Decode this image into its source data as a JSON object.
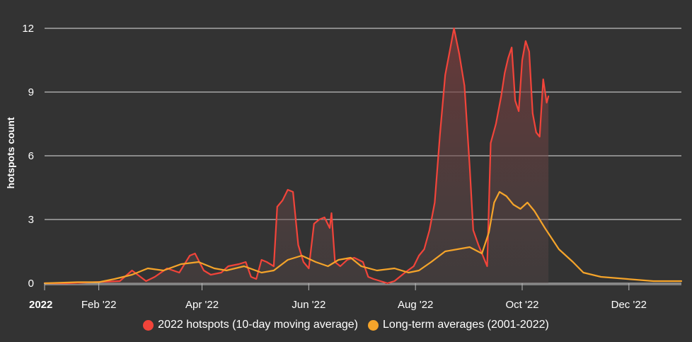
{
  "colors": {
    "background": "#333333",
    "hotspots_2022": "#f2443a",
    "long_term": "#f5a42a",
    "grid": "#ffffff"
  },
  "chart_data": {
    "type": "line",
    "ylabel": "hotspots count",
    "ylim": [
      0,
      12
    ],
    "yticks": [
      "0",
      "3",
      "6",
      "9",
      "12"
    ],
    "x_axis": {
      "range": [
        "2022-01-01",
        "2022-12-31"
      ],
      "ticks": [
        {
          "date": "2022-01-01",
          "label": "2022",
          "bold": true
        },
        {
          "date": "2022-02-01",
          "label": "Feb '22"
        },
        {
          "date": "2022-04-01",
          "label": "Apr '22"
        },
        {
          "date": "2022-06-01",
          "label": "Jun '22"
        },
        {
          "date": "2022-08-01",
          "label": "Aug '22"
        },
        {
          "date": "2022-10-01",
          "label": "Oct '22"
        },
        {
          "date": "2022-12-01",
          "label": "Dec '22"
        }
      ]
    },
    "grid": "horizontal",
    "legend_position": "bottom",
    "series": [
      {
        "name": "2022 hotspots (10-day moving average)",
        "color": "#f2443a",
        "points": [
          [
            "2022-01-01",
            0.0
          ],
          [
            "2022-01-14",
            0.0
          ],
          [
            "2022-02-13",
            0.1
          ],
          [
            "2022-02-20",
            0.6
          ],
          [
            "2022-02-28",
            0.1
          ],
          [
            "2022-03-05",
            0.3
          ],
          [
            "2022-03-12",
            0.7
          ],
          [
            "2022-03-19",
            0.5
          ],
          [
            "2022-03-25",
            1.3
          ],
          [
            "2022-03-28",
            1.4
          ],
          [
            "2022-04-02",
            0.6
          ],
          [
            "2022-04-06",
            0.4
          ],
          [
            "2022-04-12",
            0.5
          ],
          [
            "2022-04-16",
            0.8
          ],
          [
            "2022-04-22",
            0.9
          ],
          [
            "2022-04-26",
            1.0
          ],
          [
            "2022-04-29",
            0.3
          ],
          [
            "2022-05-02",
            0.2
          ],
          [
            "2022-05-05",
            1.1
          ],
          [
            "2022-05-08",
            1.0
          ],
          [
            "2022-05-12",
            0.8
          ],
          [
            "2022-05-14",
            3.6
          ],
          [
            "2022-05-17",
            3.9
          ],
          [
            "2022-05-20",
            4.4
          ],
          [
            "2022-05-23",
            4.3
          ],
          [
            "2022-05-26",
            1.8
          ],
          [
            "2022-05-29",
            1.0
          ],
          [
            "2022-06-01",
            0.7
          ],
          [
            "2022-06-04",
            2.8
          ],
          [
            "2022-06-07",
            3.0
          ],
          [
            "2022-06-10",
            3.1
          ],
          [
            "2022-06-13",
            2.6
          ],
          [
            "2022-06-14",
            3.3
          ],
          [
            "2022-06-16",
            1.0
          ],
          [
            "2022-06-19",
            0.8
          ],
          [
            "2022-06-23",
            1.1
          ],
          [
            "2022-06-27",
            1.2
          ],
          [
            "2022-07-02",
            1.0
          ],
          [
            "2022-07-05",
            0.3
          ],
          [
            "2022-07-08",
            0.2
          ],
          [
            "2022-07-12",
            0.1
          ],
          [
            "2022-07-16",
            0.0
          ],
          [
            "2022-07-20",
            0.1
          ],
          [
            "2022-07-26",
            0.5
          ],
          [
            "2022-07-31",
            0.8
          ],
          [
            "2022-08-03",
            1.3
          ],
          [
            "2022-08-06",
            1.6
          ],
          [
            "2022-08-09",
            2.5
          ],
          [
            "2022-08-12",
            3.8
          ],
          [
            "2022-08-15",
            7.0
          ],
          [
            "2022-08-18",
            9.8
          ],
          [
            "2022-08-21",
            11.1
          ],
          [
            "2022-08-23",
            12.0
          ],
          [
            "2022-08-26",
            10.8
          ],
          [
            "2022-08-29",
            9.3
          ],
          [
            "2022-09-01",
            5.5
          ],
          [
            "2022-09-03",
            2.5
          ],
          [
            "2022-09-06",
            1.8
          ],
          [
            "2022-09-09",
            1.2
          ],
          [
            "2022-09-11",
            0.8
          ],
          [
            "2022-09-13",
            6.6
          ],
          [
            "2022-09-16",
            7.5
          ],
          [
            "2022-09-19",
            8.8
          ],
          [
            "2022-09-21",
            9.9
          ],
          [
            "2022-09-23",
            10.6
          ],
          [
            "2022-09-25",
            11.1
          ],
          [
            "2022-09-27",
            8.6
          ],
          [
            "2022-09-29",
            8.1
          ],
          [
            "2022-10-01",
            10.5
          ],
          [
            "2022-10-03",
            11.4
          ],
          [
            "2022-10-05",
            10.9
          ],
          [
            "2022-10-07",
            8.0
          ],
          [
            "2022-10-09",
            7.1
          ],
          [
            "2022-10-11",
            6.9
          ],
          [
            "2022-10-13",
            9.6
          ],
          [
            "2022-10-15",
            8.5
          ],
          [
            "2022-10-16",
            8.8
          ]
        ]
      },
      {
        "name": "Long-term averages (2001-2022)",
        "color": "#f5a42a",
        "points": [
          [
            "2022-01-01",
            0.0
          ],
          [
            "2022-01-20",
            0.05
          ],
          [
            "2022-02-01",
            0.05
          ],
          [
            "2022-02-10",
            0.2
          ],
          [
            "2022-02-20",
            0.4
          ],
          [
            "2022-03-01",
            0.7
          ],
          [
            "2022-03-10",
            0.6
          ],
          [
            "2022-03-20",
            0.9
          ],
          [
            "2022-03-30",
            1.0
          ],
          [
            "2022-04-08",
            0.7
          ],
          [
            "2022-04-15",
            0.6
          ],
          [
            "2022-04-25",
            0.8
          ],
          [
            "2022-05-05",
            0.5
          ],
          [
            "2022-05-12",
            0.6
          ],
          [
            "2022-05-20",
            1.1
          ],
          [
            "2022-05-28",
            1.3
          ],
          [
            "2022-06-05",
            1.0
          ],
          [
            "2022-06-12",
            0.8
          ],
          [
            "2022-06-18",
            1.1
          ],
          [
            "2022-06-25",
            1.2
          ],
          [
            "2022-07-01",
            0.8
          ],
          [
            "2022-07-10",
            0.6
          ],
          [
            "2022-07-20",
            0.7
          ],
          [
            "2022-07-28",
            0.5
          ],
          [
            "2022-08-03",
            0.6
          ],
          [
            "2022-08-10",
            1.0
          ],
          [
            "2022-08-18",
            1.5
          ],
          [
            "2022-08-25",
            1.6
          ],
          [
            "2022-09-01",
            1.7
          ],
          [
            "2022-09-08",
            1.4
          ],
          [
            "2022-09-12",
            2.4
          ],
          [
            "2022-09-15",
            3.8
          ],
          [
            "2022-09-18",
            4.3
          ],
          [
            "2022-09-22",
            4.1
          ],
          [
            "2022-09-26",
            3.7
          ],
          [
            "2022-09-30",
            3.5
          ],
          [
            "2022-10-04",
            3.8
          ],
          [
            "2022-10-08",
            3.4
          ],
          [
            "2022-10-14",
            2.6
          ],
          [
            "2022-10-22",
            1.6
          ],
          [
            "2022-10-30",
            1.0
          ],
          [
            "2022-11-05",
            0.5
          ],
          [
            "2022-11-15",
            0.3
          ],
          [
            "2022-11-30",
            0.2
          ],
          [
            "2022-12-15",
            0.1
          ],
          [
            "2022-12-31",
            0.1
          ]
        ]
      }
    ]
  }
}
